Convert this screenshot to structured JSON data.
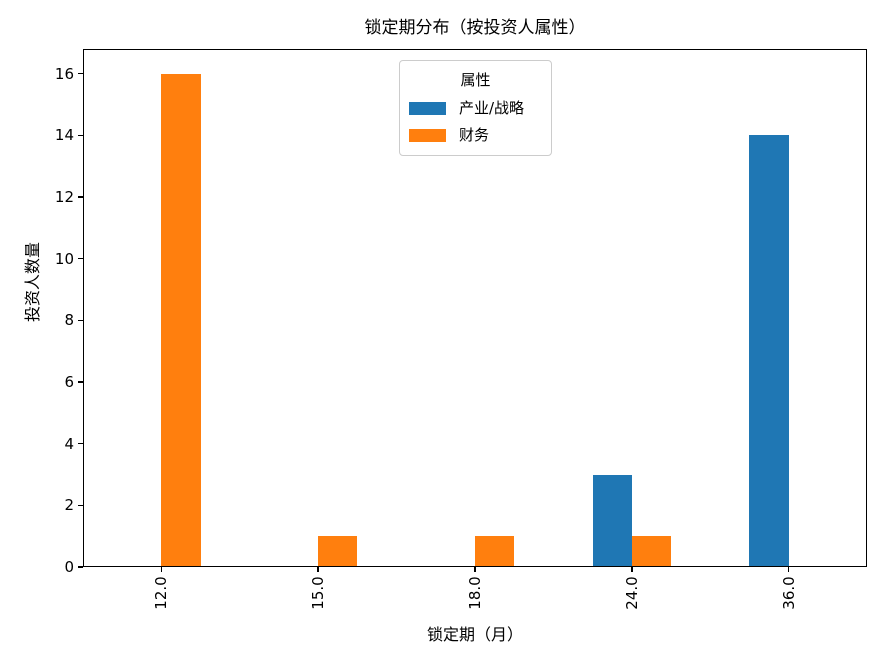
{
  "chart_data": {
    "type": "bar",
    "title": "锁定期分布（按投资人属性）",
    "xlabel": "锁定期（月）",
    "ylabel": "投资人数量",
    "categories": [
      "12.0",
      "15.0",
      "18.0",
      "24.0",
      "36.0"
    ],
    "series": [
      {
        "name": "产业/战略",
        "color": "#1f77b4",
        "values": [
          0,
          0,
          0,
          3,
          14
        ]
      },
      {
        "name": "财务",
        "color": "#ff7f0e",
        "values": [
          16,
          1,
          1,
          1,
          0
        ]
      }
    ],
    "legend": {
      "title": "属性",
      "position": "upper center"
    },
    "ylim": [
      0,
      16.8
    ],
    "yticks": [
      0,
      2,
      4,
      6,
      8,
      10,
      12,
      14,
      16
    ],
    "grid": false,
    "bar_group_width_fraction": 0.5,
    "x_tick_label_rotation_deg": 90
  }
}
